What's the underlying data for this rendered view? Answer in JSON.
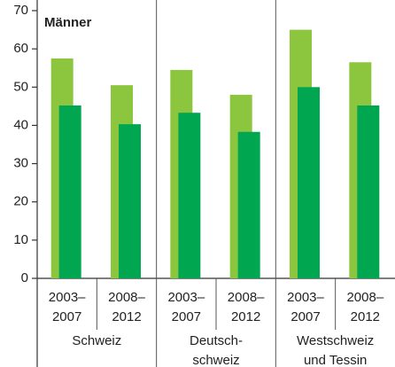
{
  "chart_data": {
    "type": "bar",
    "title": "Männer",
    "categories": [
      "2003–\n2007",
      "2008–\n2012",
      "2003–\n2007",
      "2008–\n2012",
      "2003–\n2007",
      "2008–\n2012"
    ],
    "groups": [
      "Schweiz",
      "Deutsch-\nschweiz",
      "Westschweiz\nund Tessin"
    ],
    "series": [
      {
        "color": "#8cc63e",
        "values": [
          57.5,
          50.5,
          54.5,
          48,
          65,
          56.5
        ]
      },
      {
        "color": "#00a650",
        "values": [
          45.2,
          40.3,
          43.3,
          38.3,
          50,
          45.2
        ]
      }
    ],
    "ylim": [
      0,
      70
    ],
    "yticks": [
      0,
      10,
      20,
      30,
      40,
      50,
      60,
      70
    ],
    "grid": false
  }
}
